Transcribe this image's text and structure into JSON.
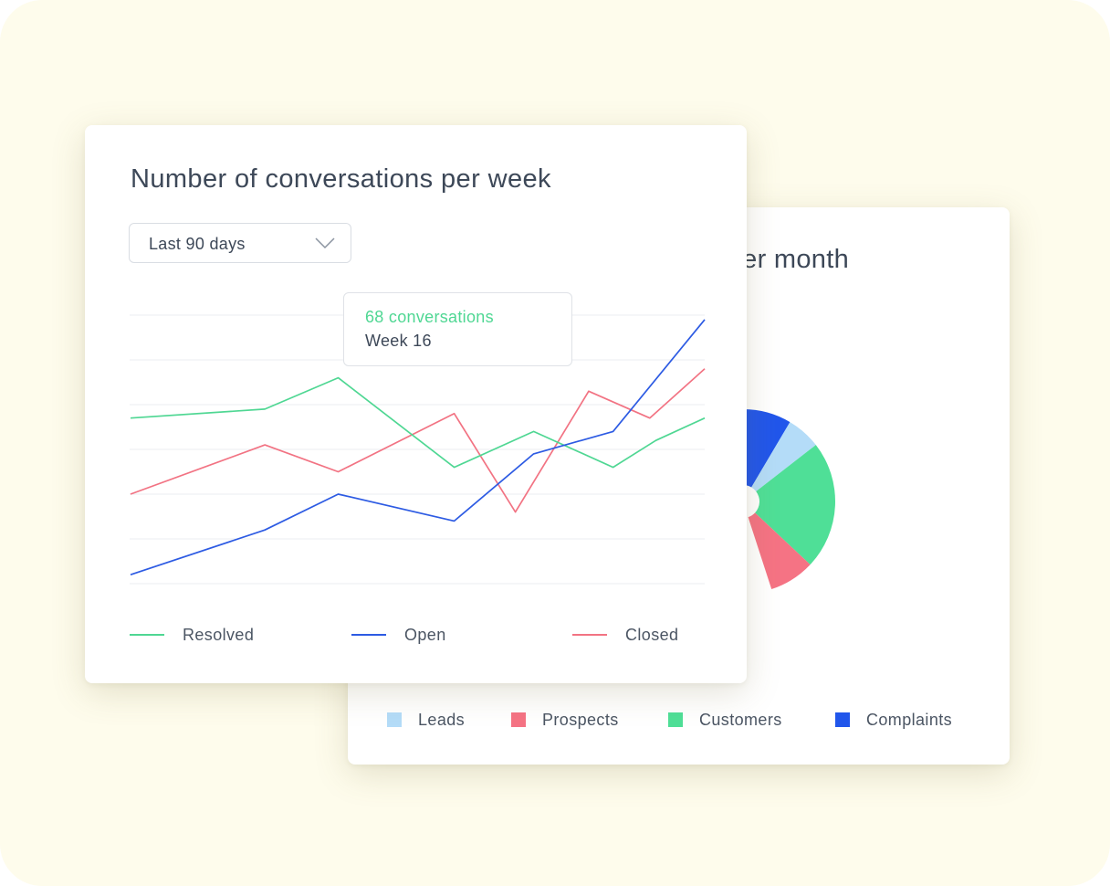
{
  "colors": {
    "resolved": "#4fd793",
    "open": "#2d5be3",
    "closed": "#f27383",
    "leads": "#b4dcf8",
    "prospects": "#f57384",
    "customers": "#4fdf97",
    "complaints": "#2156eb",
    "grid": "#ebeef2",
    "background": "#fefcec"
  },
  "line_card": {
    "title": "Number of conversations per week",
    "dropdown": {
      "selected": "Last 90 days",
      "icon": "chevron-down-icon"
    },
    "tooltip": {
      "value_text": "68 conversations",
      "label_text": "Week 16"
    },
    "legend": [
      {
        "label": "Resolved",
        "color": "#4fd793"
      },
      {
        "label": "Open",
        "color": "#2d5be3"
      },
      {
        "label": "Closed",
        "color": "#f27383"
      }
    ]
  },
  "pie_card": {
    "title_visible_fragment": "er month",
    "legend": [
      {
        "label": "Leads",
        "color": "#b4dcf8"
      },
      {
        "label": "Prospects",
        "color": "#f57384"
      },
      {
        "label": "Customers",
        "color": "#4fdf97"
      },
      {
        "label": "Complaints",
        "color": "#2156eb"
      }
    ]
  },
  "chart_data": [
    {
      "type": "line",
      "title": "Number of conversations per week",
      "ylim": [
        0,
        6
      ],
      "grid": true,
      "legend_position": "bottom",
      "series": [
        {
          "name": "Resolved",
          "x": [
            0,
            2.2,
            3.4,
            5.3,
            6.6,
            7.9,
            8.6,
            9.4
          ],
          "values": [
            3.7,
            3.9,
            4.6,
            2.6,
            3.4,
            2.6,
            3.2,
            3.7
          ]
        },
        {
          "name": "Open",
          "x": [
            0,
            2.2,
            3.4,
            5.3,
            6.6,
            7.9,
            9.4
          ],
          "values": [
            0.2,
            1.2,
            2.0,
            1.4,
            2.9,
            3.4,
            5.9
          ]
        },
        {
          "name": "Closed",
          "x": [
            0,
            2.2,
            3.4,
            5.3,
            6.3,
            7.5,
            8.5,
            9.4
          ],
          "values": [
            2.0,
            3.1,
            2.5,
            3.8,
            1.6,
            4.3,
            3.7,
            4.8
          ]
        }
      ]
    },
    {
      "type": "pie",
      "title": "",
      "donut": true,
      "visible_portion_only": true,
      "slices": [
        {
          "label": "Complaints",
          "value": 0.085
        },
        {
          "label": "Leads",
          "value": 0.06
        },
        {
          "label": "Customers",
          "value": 0.225
        },
        {
          "label": "Prospects",
          "value": 0.08
        }
      ]
    }
  ]
}
